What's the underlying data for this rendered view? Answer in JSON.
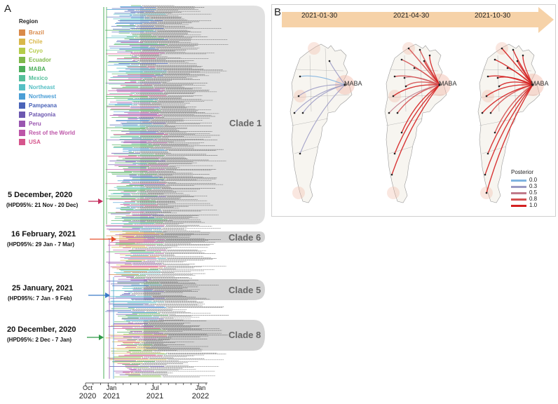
{
  "panels": {
    "a": "A",
    "b": "B"
  },
  "legend": {
    "title": "Region",
    "items": [
      {
        "label": "Brazil",
        "color": "#d98a4a"
      },
      {
        "label": "Chile",
        "color": "#d9b84a"
      },
      {
        "label": "Cuyo",
        "color": "#b5cc4a"
      },
      {
        "label": "Ecuador",
        "color": "#7fb84a"
      },
      {
        "label": "MABA",
        "color": "#4cae5a"
      },
      {
        "label": "Mexico",
        "color": "#55bf9a"
      },
      {
        "label": "Northeast",
        "color": "#55bfc4"
      },
      {
        "label": "Northwest",
        "color": "#4a9ed6"
      },
      {
        "label": "Pampeana",
        "color": "#4a63b8"
      },
      {
        "label": "Patagonia",
        "color": "#6c57b0"
      },
      {
        "label": "Peru",
        "color": "#9a55b0"
      },
      {
        "label": "Rest of the World",
        "color": "#bd55a8"
      },
      {
        "label": "USA",
        "color": "#d6558c"
      }
    ]
  },
  "annotations": [
    {
      "date": "5 December, 2020",
      "hpd": "(HPD95%: 21 Nov - 20 Dec)",
      "arrow_color": "#c42e5e"
    },
    {
      "date": "16 February, 2021",
      "hpd": "(HPD95%: 29 Jan - 7 Mar)",
      "arrow_color": "#e8502d"
    },
    {
      "date": "25 January, 2021",
      "hpd": "(HPD95%: 7 Jan - 9 Feb)",
      "arrow_color": "#3a7bc8"
    },
    {
      "date": "20 December, 2020",
      "hpd": "(HPD95%: 2 Dec - 7 Jan)",
      "arrow_color": "#2f9a48"
    }
  ],
  "clades": [
    "Clade 1",
    "Clade 6",
    "Clade 5",
    "Clade 8"
  ],
  "time_axis": {
    "ticks": [
      {
        "month": "Oct",
        "year": "2020"
      },
      {
        "month": "Jan",
        "year": "2021"
      },
      {
        "month": "Jul",
        "year": "2021"
      },
      {
        "month": "Jan",
        "year": "2022"
      }
    ]
  },
  "maps": {
    "dates": [
      "2021-01-30",
      "2021-04-30",
      "2021-10-30"
    ],
    "hub_label": "MABA",
    "posterior": {
      "title": "Posterior",
      "items": [
        {
          "value": "0.0",
          "color": "#7fb3e0"
        },
        {
          "value": "0.3",
          "color": "#9a9ac4"
        },
        {
          "value": "0.5",
          "color": "#c07a8a"
        },
        {
          "value": "0.8",
          "color": "#d45050"
        },
        {
          "value": "1.0",
          "color": "#d42020"
        }
      ]
    }
  },
  "colors": {
    "clade_shade": "#c8c8c8",
    "arrow_band": "#f6d2a8",
    "map_halo": "#f2b9a6"
  }
}
